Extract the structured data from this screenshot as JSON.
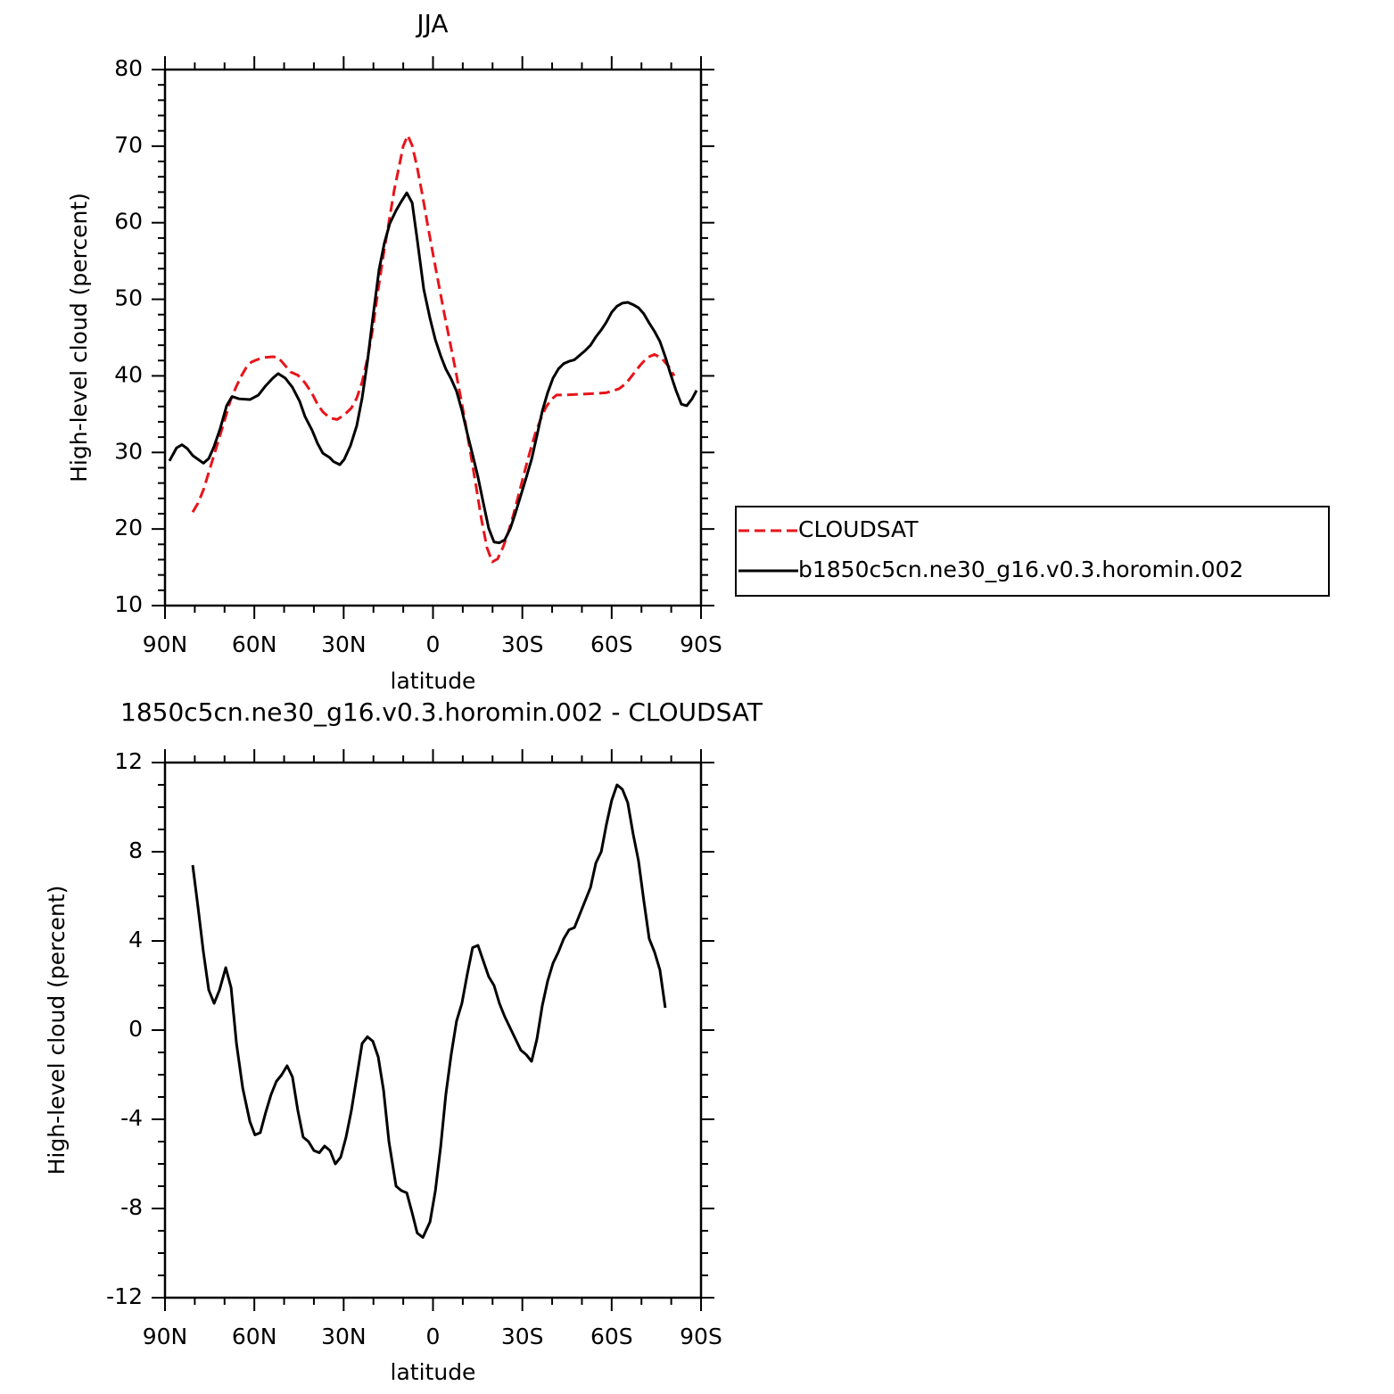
{
  "chart_data": [
    {
      "type": "line",
      "title": "JJA",
      "xlabel": "latitude",
      "ylabel": "High-level cloud (percent)",
      "xlim": [
        90,
        -90
      ],
      "ylim": [
        10,
        80
      ],
      "xticks": [
        {
          "value": 90,
          "label": "90N"
        },
        {
          "value": 60,
          "label": "60N"
        },
        {
          "value": 30,
          "label": "30N"
        },
        0,
        {
          "value": -30,
          "label": "30S"
        },
        {
          "value": -60,
          "label": "60S"
        },
        {
          "value": -90,
          "label": "90S"
        }
      ],
      "yticks": [
        10,
        20,
        30,
        40,
        50,
        60,
        70,
        80
      ],
      "legend": "right",
      "series": [
        {
          "name": "CLOUDSAT",
          "color": "#e8141a",
          "line_style": "dashed",
          "x": [
            80.7,
            78.9,
            77.1,
            75.3,
            73.5,
            71.7,
            69.9,
            68.1,
            66.3,
            64.5,
            62.7,
            61.0,
            59.2,
            56.8,
            53.8,
            52.0,
            50.2,
            47.8,
            45.4,
            43.0,
            40.6,
            38.8,
            37.0,
            34.6,
            32.2,
            29.8,
            27.4,
            25.6,
            23.8,
            22.0,
            20.2,
            18.4,
            16.6,
            14.8,
            13.0,
            11.2,
            10.0,
            8.5,
            7.0,
            5.3,
            3.5,
            1.7,
            -0.1,
            -1.9,
            -3.7,
            -5.5,
            -7.3,
            -9.1,
            -10.9,
            -12.7,
            -14.5,
            -16.3,
            -18.1,
            -19.9,
            -21.7,
            -23.5,
            -25.3,
            -27.1,
            -28.9,
            -30.7,
            -32.5,
            -34.3,
            -36.1,
            -37.9,
            -39.7,
            -41.5,
            -44.5,
            -49.3,
            -54.1,
            -58.2,
            -62.4,
            -64.8,
            -67.2,
            -69.6,
            -72.0,
            -74.4,
            -76.8,
            -79.2,
            -81.0
          ],
          "values": [
            22.2,
            23.4,
            25.1,
            27.4,
            29.7,
            32.0,
            34.3,
            36.7,
            38.4,
            39.9,
            41.1,
            41.8,
            42.1,
            42.4,
            42.5,
            42.4,
            41.6,
            40.5,
            40.1,
            39.1,
            37.7,
            36.3,
            35.3,
            34.5,
            34.3,
            34.9,
            35.8,
            37.1,
            39.2,
            42.3,
            46.2,
            51.3,
            55.9,
            60.1,
            64.3,
            67.7,
            70.0,
            71.4,
            70.1,
            67.2,
            63.5,
            59.5,
            55.7,
            52.0,
            48.3,
            44.8,
            41.3,
            37.6,
            33.8,
            29.7,
            25.5,
            21.2,
            17.6,
            15.7,
            16.1,
            17.6,
            19.6,
            22.0,
            24.7,
            27.4,
            30.0,
            32.4,
            34.3,
            35.9,
            36.9,
            37.5,
            37.5,
            37.6,
            37.7,
            37.8,
            38.3,
            39.0,
            40.2,
            41.4,
            42.4,
            42.8,
            42.3,
            41.2,
            40.0
          ]
        },
        {
          "name": "b1850c5cn.ne30_g16.v0.3.horomin.002",
          "color": "#000000",
          "line_style": "solid",
          "x": [
            88.5,
            86.1,
            84.3,
            82.5,
            80.7,
            77.1,
            75.3,
            73.5,
            71.4,
            69.3,
            67.5,
            65.1,
            61.5,
            58.6,
            56.2,
            53.8,
            52.0,
            49.6,
            47.2,
            44.8,
            43.0,
            40.6,
            38.8,
            37.0,
            34.6,
            33.4,
            31.3,
            29.8,
            27.7,
            25.6,
            23.8,
            22.0,
            20.2,
            18.1,
            16.3,
            14.5,
            12.4,
            10.6,
            8.8,
            7.0,
            5.3,
            3.1,
            1.0,
            -0.8,
            -2.6,
            -4.3,
            -6.1,
            -7.9,
            -9.7,
            -11.5,
            -13.3,
            -15.1,
            -16.9,
            -18.7,
            -20.5,
            -22.3,
            -24.1,
            -25.9,
            -27.7,
            -29.5,
            -31.3,
            -33.1,
            -34.9,
            -36.7,
            -38.5,
            -40.3,
            -42.1,
            -43.9,
            -45.7,
            -47.5,
            -49.3,
            -51.1,
            -52.9,
            -54.7,
            -56.5,
            -58.2,
            -60.0,
            -61.8,
            -63.6,
            -65.4,
            -67.2,
            -69.0,
            -70.8,
            -72.6,
            -74.4,
            -76.2,
            -78.0,
            -79.8,
            -81.6,
            -83.4,
            -85.2,
            -87.0,
            -88.5
          ],
          "values": [
            28.9,
            30.6,
            31.0,
            30.5,
            29.6,
            28.6,
            29.2,
            30.8,
            33.2,
            36.1,
            37.3,
            37.0,
            36.9,
            37.5,
            38.7,
            39.7,
            40.3,
            39.7,
            38.5,
            36.7,
            34.7,
            32.9,
            31.2,
            29.9,
            29.3,
            28.8,
            28.4,
            29.1,
            30.9,
            33.5,
            37.1,
            41.9,
            47.6,
            53.9,
            57.4,
            59.9,
            61.6,
            62.8,
            63.9,
            62.6,
            57.8,
            51.3,
            47.5,
            44.7,
            42.6,
            40.9,
            39.6,
            38.0,
            35.5,
            32.5,
            29.7,
            26.8,
            23.4,
            20.1,
            18.3,
            18.2,
            18.6,
            20.0,
            22.1,
            24.4,
            26.7,
            29.1,
            32.2,
            35.4,
            37.8,
            39.7,
            40.9,
            41.6,
            41.9,
            42.1,
            42.7,
            43.3,
            44.0,
            45.1,
            46.0,
            47.0,
            48.3,
            49.1,
            49.5,
            49.6,
            49.3,
            48.9,
            48.1,
            46.9,
            45.8,
            44.5,
            42.5,
            40.2,
            38.1,
            36.3,
            36.1,
            37.0,
            38.1
          ]
        }
      ]
    },
    {
      "type": "line",
      "title": "1850c5cn.ne30_g16.v0.3.horomin.002 - CLOUDSAT",
      "xlabel": "latitude",
      "ylabel": "High-level cloud (percent)",
      "xlim": [
        90,
        -90
      ],
      "ylim": [
        -12,
        12
      ],
      "xticks": [
        {
          "value": 90,
          "label": "90N"
        },
        {
          "value": 60,
          "label": "60N"
        },
        {
          "value": 30,
          "label": "30N"
        },
        0,
        {
          "value": -30,
          "label": "30S"
        },
        {
          "value": -60,
          "label": "60S"
        },
        {
          "value": -90,
          "label": "90S"
        }
      ],
      "yticks": [
        -12,
        -8,
        -4,
        0,
        4,
        8,
        12
      ],
      "series": [
        {
          "color": "#000000",
          "line_style": "solid",
          "x": [
            80.7,
            78.9,
            77.1,
            75.3,
            73.5,
            71.7,
            69.6,
            67.8,
            66.0,
            63.9,
            61.5,
            59.8,
            58.0,
            56.2,
            54.4,
            52.6,
            50.8,
            49.0,
            47.2,
            45.4,
            43.6,
            41.8,
            40.0,
            38.2,
            36.4,
            34.6,
            32.8,
            31.0,
            29.2,
            27.4,
            25.6,
            23.8,
            22.0,
            20.2,
            18.4,
            16.6,
            14.8,
            12.4,
            10.6,
            8.8,
            7.0,
            5.3,
            3.4,
            1.0,
            -0.8,
            -2.6,
            -4.3,
            -6.1,
            -7.9,
            -9.7,
            -11.5,
            -13.3,
            -15.1,
            -16.9,
            -18.7,
            -20.5,
            -22.3,
            -24.1,
            -25.9,
            -27.7,
            -29.5,
            -31.3,
            -33.1,
            -34.9,
            -36.7,
            -38.5,
            -40.3,
            -42.1,
            -43.9,
            -45.7,
            -47.5,
            -49.3,
            -51.1,
            -52.9,
            -54.7,
            -56.5,
            -58.2,
            -60.0,
            -61.8,
            -63.6,
            -65.4,
            -67.2,
            -69.0,
            -70.8,
            -72.6,
            -74.4,
            -76.2,
            -78.0
          ],
          "values": [
            7.4,
            5.5,
            3.5,
            1.8,
            1.2,
            1.8,
            2.8,
            1.9,
            -0.6,
            -2.6,
            -4.1,
            -4.7,
            -4.6,
            -3.7,
            -2.9,
            -2.3,
            -2.0,
            -1.6,
            -2.1,
            -3.6,
            -4.8,
            -5.0,
            -5.4,
            -5.5,
            -5.2,
            -5.4,
            -6.0,
            -5.7,
            -4.8,
            -3.6,
            -2.1,
            -0.6,
            -0.3,
            -0.5,
            -1.2,
            -2.7,
            -5.0,
            -7.0,
            -7.2,
            -7.3,
            -8.2,
            -9.1,
            -9.3,
            -8.6,
            -7.2,
            -5.2,
            -2.9,
            -1.1,
            0.4,
            1.2,
            2.5,
            3.7,
            3.8,
            3.1,
            2.4,
            2.0,
            1.2,
            0.6,
            0.1,
            -0.4,
            -0.9,
            -1.1,
            -1.4,
            -0.4,
            1.1,
            2.2,
            3.0,
            3.5,
            4.1,
            4.5,
            4.6,
            5.2,
            5.8,
            6.4,
            7.5,
            8.0,
            9.2,
            10.3,
            11.0,
            10.8,
            10.2,
            8.8,
            7.6,
            5.8,
            4.1,
            3.5,
            2.7,
            1.0
          ]
        }
      ]
    }
  ]
}
